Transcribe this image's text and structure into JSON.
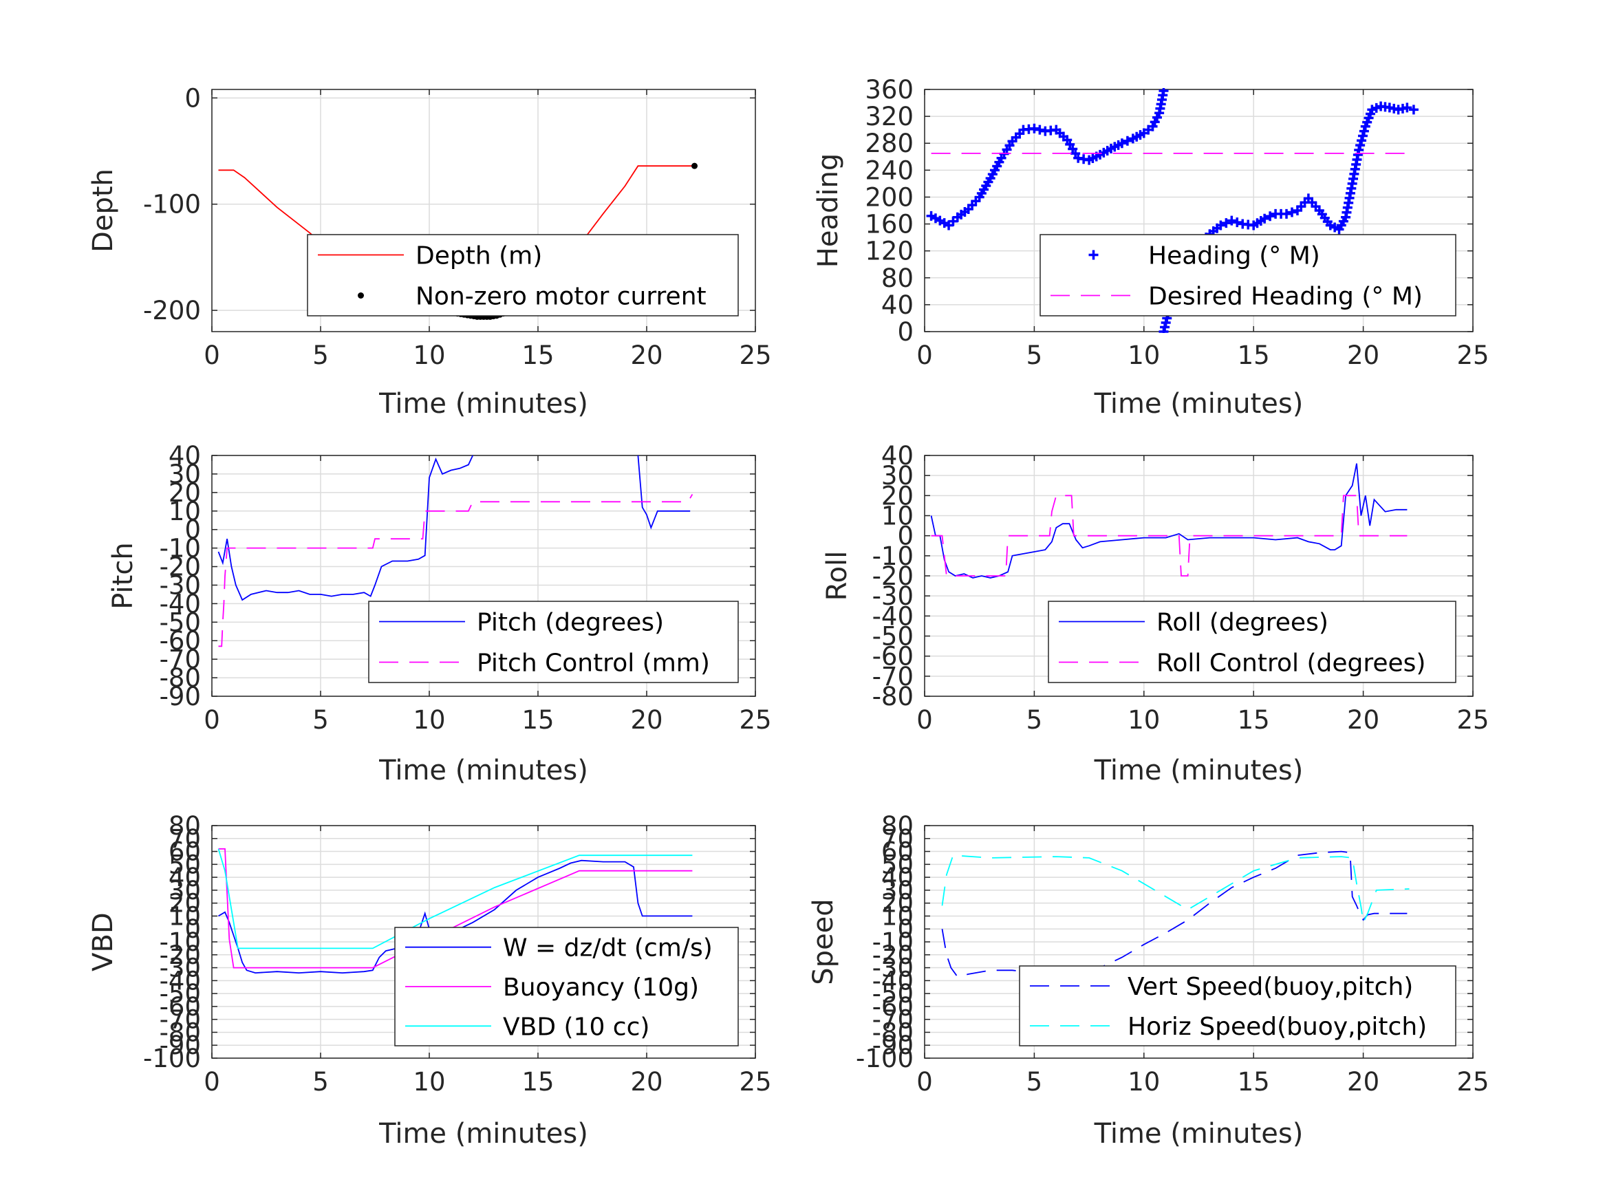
{
  "chart_data": [
    {
      "type": "line",
      "xlabel": "Time (minutes)",
      "ylabel": "Depth",
      "xlim": [
        0,
        25
      ],
      "ylim": [
        -220,
        8
      ],
      "xticks": [
        0,
        5,
        10,
        15,
        20,
        25
      ],
      "yticks": [
        0,
        -100,
        -200
      ],
      "ytick_labels": [
        "0",
        "-100",
        "-200"
      ],
      "grid": true,
      "legend": "lower-right",
      "series": [
        {
          "name": "Depth (m)",
          "color": "#ff0000",
          "style": "solid",
          "x": [
            0.3,
            1.0,
            1.5,
            3.0,
            4.5,
            5.5,
            6.5,
            7.0,
            7.5,
            8.5,
            9.5,
            10.0,
            11.0,
            12.0,
            12.8,
            13.5,
            14.5,
            15.5,
            16.5,
            17.0,
            18.0,
            19.0,
            19.6,
            20.5,
            21.5,
            22.2
          ],
          "y": [
            -68,
            -68,
            -75,
            -103,
            -127,
            -145,
            -162,
            -178,
            -185,
            -194,
            -199,
            -201,
            -202,
            -205,
            -206,
            -200,
            -184,
            -164,
            -145,
            -136,
            -109,
            -83,
            -64,
            -64,
            -64,
            -64
          ]
        },
        {
          "name": "Non-zero motor current",
          "color": "#000000",
          "style": "dots",
          "x": [
            7.0,
            7.4,
            7.6,
            7.8,
            8.0,
            8.3,
            8.6,
            8.9,
            9.2,
            9.5,
            9.8,
            10.1,
            10.4,
            10.7,
            11.0,
            11.3,
            11.6,
            11.9,
            12.2,
            12.5,
            12.8,
            13.1,
            13.4,
            13.7,
            14.0,
            14.3,
            14.6,
            14.9,
            15.2,
            15.5,
            15.8,
            16.1,
            16.4,
            16.7,
            17.0,
            22.2
          ],
          "y": [
            -182,
            -184,
            -187,
            -189,
            -191,
            -193,
            -195,
            -197,
            -198,
            -199,
            -198,
            -198,
            -199,
            -200,
            -201,
            -203,
            -204,
            -205,
            -206,
            -206,
            -206,
            -205,
            -203,
            -201,
            -198,
            -194,
            -190,
            -185,
            -179,
            -172,
            -164,
            -156,
            -148,
            -142,
            -136,
            -64
          ]
        }
      ]
    },
    {
      "type": "scatter",
      "xlabel": "Time (minutes)",
      "ylabel": "Heading",
      "xlim": [
        0,
        25
      ],
      "ylim": [
        0,
        360
      ],
      "xticks": [
        0,
        5,
        10,
        15,
        20,
        25
      ],
      "yticks": [
        0,
        40,
        80,
        120,
        160,
        200,
        240,
        280,
        320,
        360
      ],
      "ytick_labels": [
        "0",
        "40",
        "80",
        "120",
        "160",
        "200",
        "240",
        "280",
        "320",
        "360"
      ],
      "grid": true,
      "legend": "lower-right",
      "series": [
        {
          "name": "Heading (° M)",
          "color": "#0000ff",
          "style": "plus",
          "x": [
            0.3,
            0.7,
            1.1,
            1.5,
            2.0,
            2.5,
            3.0,
            3.5,
            4.0,
            4.5,
            5.0,
            5.5,
            6.0,
            6.5,
            7.0,
            7.5,
            8.0,
            8.5,
            9.0,
            9.5,
            10.0,
            10.4,
            10.7,
            10.9,
            null,
            10.9,
            11.2,
            11.5,
            11.8,
            12.1,
            12.5,
            13.0,
            13.5,
            14.0,
            14.5,
            15.0,
            15.5,
            16.0,
            16.5,
            17.0,
            17.5,
            18.0,
            18.5,
            18.9,
            19.2,
            19.5,
            19.8,
            20.1,
            20.4,
            20.8,
            21.2,
            21.6,
            22.0,
            22.3
          ],
          "y": [
            172,
            165,
            158,
            170,
            182,
            200,
            228,
            258,
            283,
            300,
            302,
            298,
            300,
            285,
            258,
            255,
            263,
            272,
            280,
            287,
            295,
            305,
            325,
            358,
            null,
            0,
            40,
            75,
            100,
            115,
            130,
            145,
            158,
            165,
            160,
            158,
            168,
            175,
            175,
            180,
            198,
            180,
            158,
            152,
            170,
            220,
            270,
            305,
            330,
            335,
            333,
            330,
            333,
            330
          ]
        },
        {
          "name": "Desired Heading (° M)",
          "color": "#ff00ff",
          "style": "dash",
          "x": [
            0.3,
            22.3
          ],
          "y": [
            265,
            265
          ]
        }
      ]
    },
    {
      "type": "line",
      "xlabel": "Time (minutes)",
      "ylabel": "Pitch",
      "xlim": [
        0,
        25
      ],
      "ylim": [
        -90,
        40
      ],
      "xticks": [
        0,
        5,
        10,
        15,
        20,
        25
      ],
      "yticks": [
        40,
        30,
        20,
        10,
        0,
        -10,
        -20,
        -30,
        -40,
        -50,
        -60,
        -70,
        -80,
        -90
      ],
      "ytick_labels": [
        "40",
        "30",
        "20",
        "10",
        "0",
        "-10",
        "-20",
        "-30",
        "-40",
        "-50",
        "-60",
        "-70",
        "-80",
        "-90"
      ],
      "grid": true,
      "legend": "lower-right",
      "series": [
        {
          "name": "Pitch (degrees)",
          "color": "#0000ff",
          "style": "solid",
          "x": [
            0.3,
            0.5,
            0.7,
            0.9,
            1.1,
            1.4,
            1.8,
            2.5,
            3.0,
            3.5,
            4.0,
            4.5,
            5.0,
            5.5,
            6.0,
            6.5,
            7.0,
            7.3,
            7.5,
            7.8,
            8.3,
            9.0,
            9.5,
            9.8,
            10.0,
            10.3,
            10.6,
            11.0,
            11.4,
            11.8,
            12.0,
            null,
            19.6,
            19.8,
            20.0,
            20.2,
            20.5,
            21.0,
            22.0
          ],
          "y": [
            -12,
            -18,
            -5,
            -20,
            -30,
            -38,
            -35,
            -33,
            -34,
            -34,
            -33,
            -35,
            -35,
            -36,
            -35,
            -35,
            -34,
            -36,
            -30,
            -20,
            -17,
            -17,
            -16,
            -14,
            28,
            38,
            30,
            32,
            33,
            35,
            40,
            null,
            40,
            12,
            8,
            1,
            10,
            10,
            10
          ]
        },
        {
          "name": "Pitch Control (mm)",
          "color": "#ff00ff",
          "style": "dash",
          "x": [
            0.3,
            0.45,
            0.5,
            0.55,
            0.6,
            0.7,
            0.8,
            1.0,
            3.0,
            5.0,
            7.0,
            7.4,
            7.5,
            8.0,
            9.5,
            9.7,
            9.8,
            10.5,
            11.8,
            12.0,
            15.0,
            20.0,
            21.9,
            22.1
          ],
          "y": [
            -63,
            -63,
            -50,
            -40,
            -25,
            -10,
            -10,
            -10,
            -10,
            -10,
            -10,
            -10,
            -5,
            -5,
            -5,
            -5,
            10,
            10,
            10,
            15,
            15,
            15,
            15,
            19
          ]
        }
      ]
    },
    {
      "type": "line",
      "xlabel": "Time (minutes)",
      "ylabel": "Roll",
      "xlim": [
        0,
        25
      ],
      "ylim": [
        -80,
        40
      ],
      "xticks": [
        0,
        5,
        10,
        15,
        20,
        25
      ],
      "yticks": [
        40,
        30,
        20,
        10,
        0,
        -10,
        -20,
        -30,
        -40,
        -50,
        -60,
        -70,
        -80
      ],
      "ytick_labels": [
        "40",
        "30",
        "20",
        "10",
        "0",
        "-10",
        "-20",
        "-30",
        "-40",
        "-50",
        "-60",
        "-70",
        "-80"
      ],
      "grid": true,
      "legend": "lower-right",
      "series": [
        {
          "name": "Roll (degrees)",
          "color": "#0000ff",
          "style": "solid",
          "x": [
            0.3,
            0.5,
            0.7,
            0.9,
            1.1,
            1.4,
            1.8,
            2.2,
            2.6,
            3.0,
            3.4,
            3.8,
            4.0,
            4.5,
            5.0,
            5.5,
            5.8,
            6.0,
            6.3,
            6.6,
            6.9,
            7.2,
            7.5,
            8.0,
            9.0,
            10.0,
            11.0,
            11.6,
            12.0,
            13.0,
            14.0,
            15.0,
            16.0,
            17.0,
            17.5,
            18.0,
            18.5,
            18.7,
            19.0,
            19.2,
            19.5,
            19.7,
            19.9,
            20.1,
            20.3,
            20.5,
            21.0,
            21.5,
            22.0
          ],
          "y": [
            10,
            0,
            0,
            -12,
            -18,
            -20,
            -19,
            -21,
            -20,
            -21,
            -20,
            -18,
            -10,
            -9,
            -8,
            -7,
            -3,
            4,
            6,
            6,
            -2,
            -6,
            -5,
            -3,
            -2,
            -1,
            -1,
            1,
            -2,
            -1,
            -1,
            -1,
            -2,
            -1,
            -3,
            -4,
            -7,
            -7,
            -5,
            20,
            25,
            36,
            10,
            20,
            5,
            18,
            12,
            13,
            13
          ]
        },
        {
          "name": "Roll Control (degrees)",
          "color": "#ff00ff",
          "style": "dash",
          "x": [
            0.3,
            0.8,
            1.0,
            1.5,
            3.0,
            3.7,
            3.8,
            5.7,
            5.8,
            6.0,
            6.7,
            6.8,
            7.5,
            11.6,
            11.7,
            12.0,
            12.1,
            15.0,
            19.0,
            19.1,
            19.7,
            19.8,
            22.0
          ],
          "y": [
            0,
            0,
            -20,
            -20,
            -20,
            -20,
            0,
            0,
            12,
            20,
            20,
            0,
            0,
            0,
            -20,
            -20,
            0,
            0,
            0,
            20,
            20,
            0,
            0
          ]
        }
      ]
    },
    {
      "type": "line",
      "xlabel": "Time (minutes)",
      "ylabel": "VBD",
      "xlim": [
        0,
        25
      ],
      "ylim": [
        -100,
        80
      ],
      "xticks": [
        0,
        5,
        10,
        15,
        20,
        25
      ],
      "yticks": [
        80,
        70,
        60,
        50,
        40,
        30,
        20,
        10,
        0,
        -10,
        -20,
        -30,
        -40,
        -50,
        -60,
        -70,
        -80,
        -90,
        -100
      ],
      "ytick_labels": [
        "80",
        "70",
        "60",
        "50",
        "40",
        "30",
        "20",
        "10",
        "0",
        "-10",
        "-20",
        "-30",
        "-40",
        "-50",
        "-60",
        "-70",
        "-80",
        "-90",
        "-100"
      ],
      "grid": true,
      "legend": "lower-right",
      "series": [
        {
          "name": "W = dz/dt (cm/s)",
          "color": "#0000ff",
          "style": "solid",
          "x": [
            0.3,
            0.6,
            0.8,
            1.0,
            1.2,
            1.4,
            1.6,
            2.0,
            3.0,
            4.0,
            5.0,
            6.0,
            7.0,
            7.4,
            7.7,
            8.0,
            8.5,
            9.0,
            9.4,
            9.6,
            9.8,
            10.0,
            10.3,
            11.0,
            12.0,
            13.0,
            14.0,
            15.0,
            16.0,
            16.5,
            17.0,
            18.0,
            19.0,
            19.4,
            19.6,
            19.8,
            20.0,
            21.0,
            22.1
          ],
          "y": [
            10,
            13,
            5,
            -5,
            -15,
            -26,
            -32,
            -34,
            -33,
            -34,
            -33,
            -34,
            -33,
            -32,
            -22,
            -17,
            -15,
            -14,
            -11,
            2,
            12,
            0,
            -5,
            -3,
            5,
            15,
            30,
            40,
            47,
            51,
            53,
            52,
            52,
            48,
            20,
            10,
            10,
            10,
            10
          ]
        },
        {
          "name": "Buoyancy (10g)",
          "color": "#ff00ff",
          "style": "solid",
          "x": [
            0.3,
            0.6,
            0.8,
            1.0,
            2.0,
            5.0,
            7.4,
            10.0,
            13.0,
            16.9,
            17.0,
            20.0,
            22.1
          ],
          "y": [
            62,
            62,
            -8,
            -30,
            -30,
            -30,
            -30,
            -8,
            17,
            45,
            45,
            45,
            45
          ]
        },
        {
          "name": "VBD (10 cc)",
          "color": "#00ffff",
          "style": "solid",
          "x": [
            0.3,
            0.6,
            0.8,
            1.0,
            1.2,
            1.5,
            2.0,
            5.0,
            7.4,
            10.0,
            13.0,
            16.9,
            17.0,
            20.0,
            22.1
          ],
          "y": [
            62,
            45,
            25,
            5,
            -15,
            -15,
            -15,
            -15,
            -15,
            8,
            32,
            57,
            57,
            57,
            57
          ]
        }
      ]
    },
    {
      "type": "line",
      "xlabel": "Time (minutes)",
      "ylabel": "Speed",
      "xlim": [
        0,
        25
      ],
      "ylim": [
        -100,
        80
      ],
      "xticks": [
        0,
        5,
        10,
        15,
        20,
        25
      ],
      "yticks": [
        80,
        70,
        60,
        50,
        40,
        30,
        20,
        10,
        0,
        -10,
        -20,
        -30,
        -40,
        -50,
        -60,
        -70,
        -80,
        -90,
        -100
      ],
      "ytick_labels": [
        "80",
        "70",
        "60",
        "50",
        "40",
        "30",
        "20",
        "10",
        "0",
        "-10",
        "-20",
        "-30",
        "-40",
        "-50",
        "-60",
        "-70",
        "-80",
        "-90",
        "-100"
      ],
      "grid": true,
      "legend": "lower-right",
      "series": [
        {
          "name": "Vert Speed(buoy,pitch)",
          "color": "#0000ff",
          "style": "dash",
          "x": [
            0.8,
            1.0,
            1.2,
            1.5,
            2.0,
            3.0,
            4.0,
            5.0,
            6.0,
            7.0,
            8.0,
            9.0,
            10.0,
            11.0,
            12.0,
            13.0,
            14.0,
            15.0,
            16.0,
            17.0,
            18.0,
            19.0,
            19.4,
            19.5,
            19.7,
            19.9,
            20.0,
            20.2,
            20.5,
            21.0,
            22.0
          ],
          "y": [
            0,
            -20,
            -30,
            -37,
            -35,
            -32,
            -32,
            -34,
            -36,
            -35,
            -30,
            -22,
            -12,
            -3,
            7,
            20,
            32,
            40,
            47,
            57,
            59,
            60,
            59,
            25,
            18,
            10,
            7,
            11,
            12,
            12,
            12
          ]
        },
        {
          "name": "Horiz Speed(buoy,pitch)",
          "color": "#00ffff",
          "style": "dash",
          "x": [
            0.8,
            1.0,
            1.3,
            3.0,
            6.0,
            7.5,
            9.0,
            11.0,
            12.0,
            13.5,
            15.0,
            17.0,
            19.0,
            19.5,
            19.7,
            19.9,
            20.0,
            20.2,
            20.6,
            22.1
          ],
          "y": [
            18,
            42,
            57,
            55,
            56,
            55,
            45,
            25,
            15,
            30,
            45,
            55,
            56,
            55,
            35,
            17,
            5,
            12,
            30,
            31
          ]
        }
      ]
    }
  ]
}
